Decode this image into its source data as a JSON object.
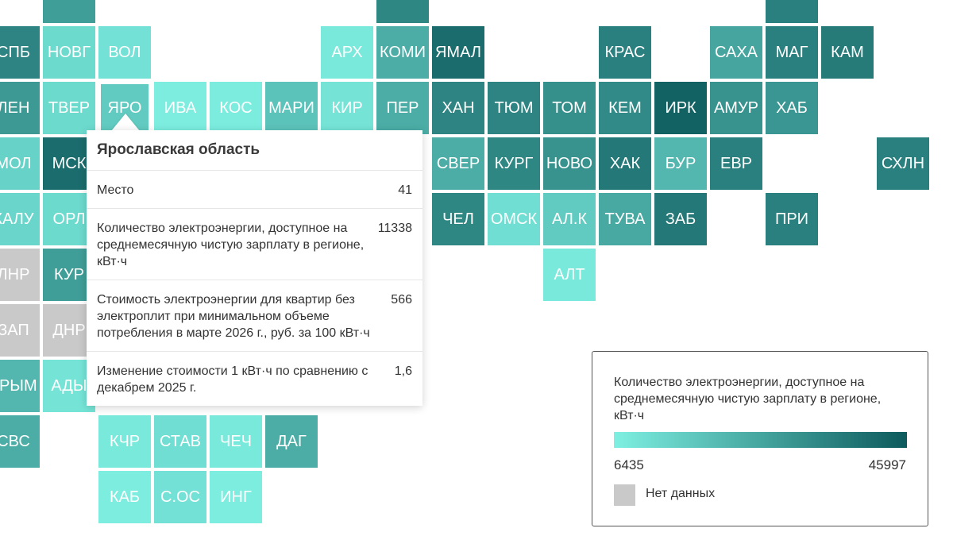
{
  "colors": {
    "light": "#7ef0e2",
    "dark": "#0d5a5c",
    "no_data": "#c9c9c9"
  },
  "legend": {
    "title": "Количество электроэнергии, доступное на среднемесячную чистую зарплату в регионе, кВт·ч",
    "min": "6435",
    "max": "45997",
    "no_data_label": "Нет данных"
  },
  "tooltip": {
    "title": "Ярославская область",
    "rows": [
      {
        "label": "Место",
        "value": "41"
      },
      {
        "label": "Количество электроэнергии, доступное на среднемесячную чистую зарплату в регионе, кВт·ч",
        "value": "11338"
      },
      {
        "label": "Стоимость электроэнергии для квартир без электроплит при минимальном объеме потребления в марте 2026 г., руб. за 100 кВт·ч",
        "value": "566"
      },
      {
        "label": "Изменение стоимости 1 кВт·ч по сравнению с декабрем 2025 г.",
        "value": "1,6"
      }
    ]
  },
  "regions": [
    {
      "label": "",
      "row": 0,
      "col": 1,
      "level": 0.55
    },
    {
      "label": "",
      "row": 0,
      "col": 7,
      "level": 0.7
    },
    {
      "label": "",
      "row": 0,
      "col": 14,
      "level": 0.75
    },
    {
      "label": "СПБ",
      "row": 1,
      "col": 0,
      "level": 0.72
    },
    {
      "label": "НОВГ",
      "row": 1,
      "col": 1,
      "level": 0.15
    },
    {
      "label": "ВОЛ",
      "row": 1,
      "col": 2,
      "level": 0.1
    },
    {
      "label": "АРХ",
      "row": 1,
      "col": 6,
      "level": 0.05
    },
    {
      "label": "КОМИ",
      "row": 1,
      "col": 7,
      "level": 0.45
    },
    {
      "label": "ЯМАЛ",
      "row": 1,
      "col": 8,
      "level": 0.88
    },
    {
      "label": "КРАС",
      "row": 1,
      "col": 11,
      "level": 0.75
    },
    {
      "label": "САХА",
      "row": 1,
      "col": 13,
      "level": 0.5
    },
    {
      "label": "МАГ",
      "row": 1,
      "col": 14,
      "level": 0.75
    },
    {
      "label": "КАМ",
      "row": 1,
      "col": 15,
      "level": 0.78
    },
    {
      "label": "ЛЕН",
      "row": 2,
      "col": 0,
      "level": 0.58
    },
    {
      "label": "ТВЕР",
      "row": 2,
      "col": 1,
      "level": 0.15
    },
    {
      "label": "ЯРО",
      "row": 2,
      "col": 2,
      "level": 0.25,
      "highlight": true
    },
    {
      "label": "ИВА",
      "row": 2,
      "col": 3,
      "level": 0.02
    },
    {
      "label": "КОС",
      "row": 2,
      "col": 4,
      "level": 0.03
    },
    {
      "label": "МАРИ",
      "row": 2,
      "col": 5,
      "level": 0.3
    },
    {
      "label": "КИР",
      "row": 2,
      "col": 6,
      "level": 0.08
    },
    {
      "label": "ПЕР",
      "row": 2,
      "col": 7,
      "level": 0.45
    },
    {
      "label": "ХАН",
      "row": 2,
      "col": 8,
      "level": 0.72
    },
    {
      "label": "ТЮМ",
      "row": 2,
      "col": 9,
      "level": 0.72
    },
    {
      "label": "ТОМ",
      "row": 2,
      "col": 10,
      "level": 0.65
    },
    {
      "label": "КЕМ",
      "row": 2,
      "col": 11,
      "level": 0.68
    },
    {
      "label": "ИРК",
      "row": 2,
      "col": 12,
      "level": 0.95
    },
    {
      "label": "АМУР",
      "row": 2,
      "col": 13,
      "level": 0.62
    },
    {
      "label": "ХАБ",
      "row": 2,
      "col": 14,
      "level": 0.6
    },
    {
      "label": "МОЛ",
      "row": 3,
      "col": 0,
      "level": 0.2
    },
    {
      "label": "МСК",
      "row": 3,
      "col": 1,
      "level": 0.88
    },
    {
      "label": "СВЕР",
      "row": 3,
      "col": 8,
      "level": 0.45
    },
    {
      "label": "КУРГ",
      "row": 3,
      "col": 9,
      "level": 0.7
    },
    {
      "label": "НОВО",
      "row": 3,
      "col": 10,
      "level": 0.62
    },
    {
      "label": "ХАК",
      "row": 3,
      "col": 11,
      "level": 0.8
    },
    {
      "label": "БУР",
      "row": 3,
      "col": 12,
      "level": 0.38
    },
    {
      "label": "ЕВР",
      "row": 3,
      "col": 13,
      "level": 0.75
    },
    {
      "label": "СХЛН",
      "row": 3,
      "col": 16,
      "level": 0.75
    },
    {
      "label": "КАЛУ",
      "row": 4,
      "col": 0,
      "level": 0.18
    },
    {
      "label": "ОРЛ",
      "row": 4,
      "col": 1,
      "level": 0.15
    },
    {
      "label": "ЧЕЛ",
      "row": 4,
      "col": 8,
      "level": 0.7
    },
    {
      "label": "ОМСК",
      "row": 4,
      "col": 9,
      "level": 0.12
    },
    {
      "label": "АЛ.К",
      "row": 4,
      "col": 10,
      "level": 0.25
    },
    {
      "label": "ТУВА",
      "row": 4,
      "col": 11,
      "level": 0.48
    },
    {
      "label": "ЗАБ",
      "row": 4,
      "col": 12,
      "level": 0.8
    },
    {
      "label": "ПРИ",
      "row": 4,
      "col": 14,
      "level": 0.75
    },
    {
      "label": "ЛНР",
      "row": 5,
      "col": 0,
      "nodata": true
    },
    {
      "label": "КУР",
      "row": 5,
      "col": 1,
      "level": 0.55
    },
    {
      "label": "АЛТ",
      "row": 5,
      "col": 10,
      "level": 0.05
    },
    {
      "label": "ЗАП",
      "row": 6,
      "col": 0,
      "nodata": true
    },
    {
      "label": "ДНР",
      "row": 6,
      "col": 1,
      "nodata": true
    },
    {
      "label": "КРЫМ",
      "row": 7,
      "col": 0,
      "level": 0.38
    },
    {
      "label": "АДЫ",
      "row": 7,
      "col": 1,
      "level": 0.08
    },
    {
      "label": "СВС",
      "row": 8,
      "col": 0,
      "level": 0.45
    },
    {
      "label": "КЧР",
      "row": 8,
      "col": 2,
      "level": 0.05
    },
    {
      "label": "СТАВ",
      "row": 8,
      "col": 3,
      "level": 0.12
    },
    {
      "label": "ЧЕЧ",
      "row": 8,
      "col": 4,
      "level": 0.05
    },
    {
      "label": "ДАГ",
      "row": 8,
      "col": 5,
      "level": 0.45
    },
    {
      "label": "КАБ",
      "row": 9,
      "col": 2,
      "level": 0.02
    },
    {
      "label": "С.ОС",
      "row": 9,
      "col": 3,
      "level": 0.1
    },
    {
      "label": "ИНГ",
      "row": 9,
      "col": 4,
      "level": 0.02
    }
  ]
}
